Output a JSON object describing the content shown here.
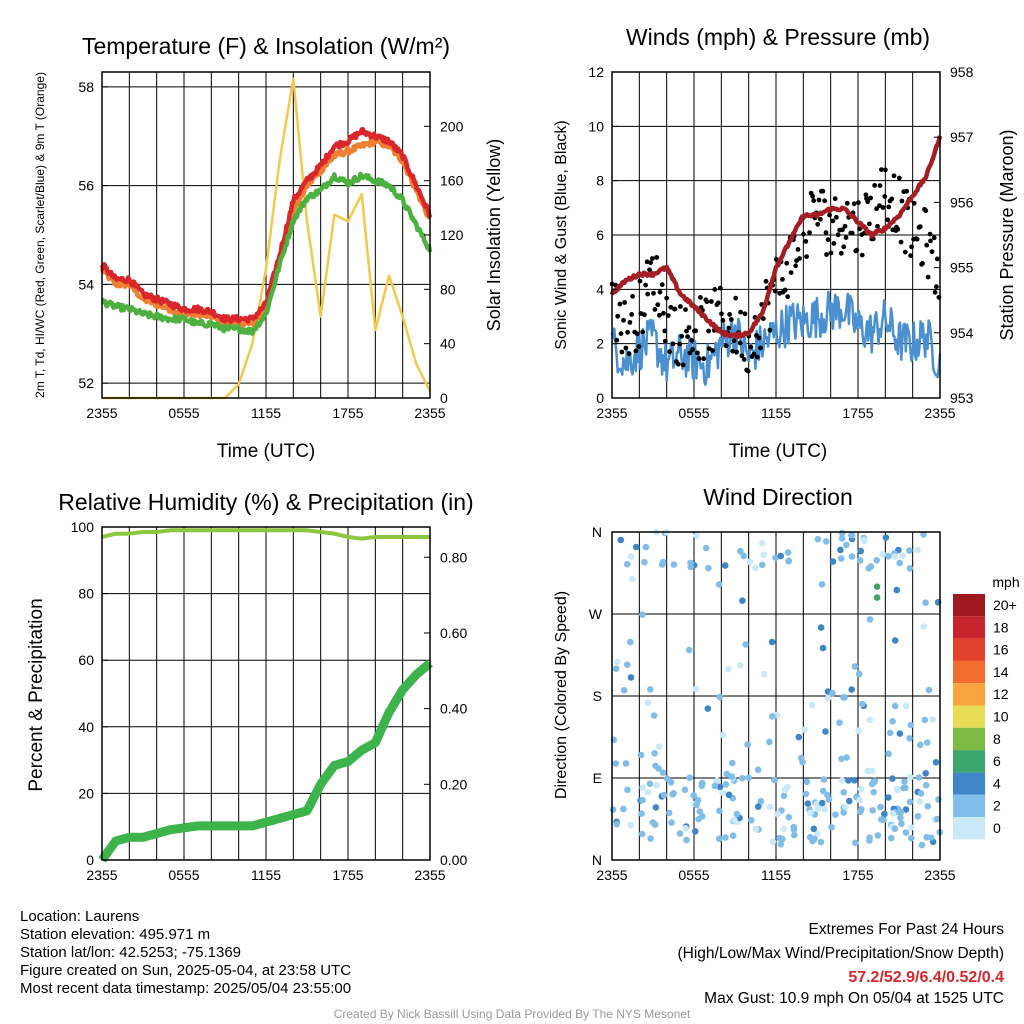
{
  "chart_data": [
    {
      "type": "line",
      "title": "Temperature (F) & Insolation (W/m²)",
      "xlabel": "Time (UTC)",
      "ylabel": "2m T, Td, HI/WC (Red, Green, Scarlet/Blue) & 9m T (Orange)",
      "ylabel_right": "Solar Insolation (Yellow)",
      "x_ticks": [
        "2355",
        "0555",
        "1155",
        "1755",
        "2355"
      ],
      "y_ticks": [
        "52",
        "54",
        "56",
        "58"
      ],
      "y_ticks_right": [
        "0",
        "40",
        "80",
        "120",
        "160",
        "200"
      ],
      "ylim": [
        51.7,
        58.3
      ],
      "ylim_right": [
        0,
        240
      ],
      "x_hours": [
        0,
        1,
        2,
        3,
        4,
        5,
        6,
        7,
        8,
        9,
        10,
        11,
        12,
        13,
        14,
        15,
        16,
        17,
        18,
        19,
        20,
        21,
        22,
        23,
        24
      ],
      "series": [
        {
          "color": "#f2c94c",
          "axis": "right",
          "values": [
            0,
            0,
            0,
            0,
            0,
            0,
            0,
            0,
            0,
            0,
            10,
            40,
            95,
            175,
            235,
            130,
            60,
            135,
            130,
            150,
            50,
            90,
            60,
            25,
            5
          ]
        },
        {
          "color": "#f08030",
          "axis": "left",
          "values": [
            54.3,
            54.0,
            54.0,
            53.7,
            53.6,
            53.5,
            53.4,
            53.4,
            53.35,
            53.2,
            53.2,
            53.2,
            53.5,
            54.5,
            55.5,
            56.0,
            56.3,
            56.6,
            56.7,
            56.8,
            56.9,
            56.8,
            56.5,
            55.9,
            55.3
          ]
        },
        {
          "color": "#d8262b",
          "axis": "left",
          "values": [
            54.4,
            54.1,
            54.1,
            53.8,
            53.7,
            53.6,
            53.5,
            53.5,
            53.45,
            53.3,
            53.3,
            53.3,
            53.6,
            54.6,
            55.7,
            56.1,
            56.4,
            56.8,
            56.9,
            57.1,
            57.0,
            56.9,
            56.6,
            56.0,
            55.4
          ]
        },
        {
          "color": "#4db13f",
          "axis": "left",
          "values": [
            53.65,
            53.55,
            53.5,
            53.4,
            53.35,
            53.3,
            53.3,
            53.2,
            53.2,
            53.1,
            53.1,
            53.05,
            53.4,
            54.4,
            55.3,
            55.75,
            55.9,
            56.2,
            56.05,
            56.2,
            56.1,
            56.0,
            55.7,
            55.2,
            54.7
          ]
        }
      ]
    },
    {
      "type": "scatter",
      "title": "Winds (mph) & Pressure (mb)",
      "xlabel": "Time (UTC)",
      "ylabel": "Sonic Wind & Gust (Blue, Black)",
      "ylabel_right": "Station Pressure (Maroon)",
      "x_ticks": [
        "2355",
        "0555",
        "1155",
        "1755",
        "2355"
      ],
      "y_ticks": [
        "0",
        "2",
        "4",
        "6",
        "8",
        "10",
        "12"
      ],
      "y_ticks_right": [
        "953",
        "954",
        "955",
        "956",
        "957",
        "958"
      ],
      "ylim": [
        0,
        12
      ],
      "ylim_right": [
        953,
        958
      ],
      "x_hours": [
        0,
        1,
        2,
        3,
        4,
        5,
        6,
        7,
        8,
        9,
        10,
        11,
        12,
        13,
        14,
        15,
        16,
        17,
        18,
        19,
        20,
        21,
        22,
        23,
        24
      ],
      "series": [
        {
          "color": "#4a90d0",
          "axis": "left",
          "values": [
            2.0,
            1.3,
            1.8,
            2.2,
            1.2,
            1.6,
            1.4,
            1.2,
            2.0,
            2.5,
            1.5,
            2.0,
            2.4,
            2.8,
            2.8,
            3.0,
            3.2,
            3.3,
            2.6,
            2.4,
            2.9,
            2.1,
            2.0,
            2.3,
            1.2
          ]
        },
        {
          "color": "#000000",
          "axis": "left",
          "values": [
            3.8,
            2.4,
            3.1,
            4.6,
            3.0,
            2.3,
            2.5,
            2.6,
            3.0,
            2.6,
            2.0,
            3.1,
            4.1,
            5.0,
            6.0,
            7.0,
            6.2,
            6.6,
            6.3,
            6.8,
            7.8,
            7.0,
            6.0,
            5.8,
            4.2
          ]
        },
        {
          "color": "#a51e24",
          "axis": "right",
          "values": [
            954.6,
            954.8,
            954.9,
            954.9,
            955.0,
            954.6,
            954.4,
            954.2,
            954.0,
            953.95,
            954.0,
            954.3,
            955.0,
            955.4,
            955.8,
            955.8,
            955.9,
            955.9,
            955.7,
            955.5,
            955.6,
            955.8,
            956.1,
            956.4,
            957.0
          ]
        }
      ]
    },
    {
      "type": "line",
      "title": "Relative Humidity (%) & Precipitation (in)",
      "ylabel": "Percent & Precipitation",
      "x_ticks": [
        "2355",
        "0555",
        "1155",
        "1755",
        "2355"
      ],
      "y_ticks": [
        "0",
        "20",
        "40",
        "60",
        "80",
        "100"
      ],
      "y_ticks_right": [
        "0.00",
        "0.20",
        "0.40",
        "0.60",
        "0.80"
      ],
      "ylim": [
        0,
        100
      ],
      "ylim_right": [
        0,
        0.88
      ],
      "x_hours": [
        0,
        1,
        2,
        3,
        4,
        5,
        6,
        7,
        8,
        9,
        10,
        11,
        12,
        13,
        14,
        15,
        16,
        17,
        18,
        19,
        20,
        21,
        22,
        23,
        24
      ],
      "series": [
        {
          "color": "#8cc63f",
          "axis": "left",
          "values": [
            97,
            98,
            98,
            98.5,
            98.5,
            99,
            99,
            99,
            99,
            99,
            99,
            99,
            99,
            99,
            99,
            99,
            98.5,
            98,
            97,
            96.5,
            97,
            97,
            97,
            97,
            97
          ]
        },
        {
          "color": "#3cb44b",
          "axis": "right",
          "values": [
            0.0,
            0.05,
            0.06,
            0.06,
            0.07,
            0.08,
            0.085,
            0.09,
            0.09,
            0.09,
            0.09,
            0.09,
            0.1,
            0.11,
            0.12,
            0.13,
            0.2,
            0.25,
            0.26,
            0.29,
            0.31,
            0.39,
            0.45,
            0.49,
            0.52
          ]
        }
      ]
    },
    {
      "type": "scatter",
      "title": "Wind Direction",
      "ylabel": "Direction (Colored By Speed)",
      "x_ticks": [
        "2355",
        "0555",
        "1155",
        "1755",
        "2355"
      ],
      "y_ticks": [
        "N",
        "E",
        "S",
        "W",
        "N"
      ],
      "ylim": [
        0,
        360
      ],
      "legend_title": "mph",
      "legend_labels": [
        "20+",
        "18",
        "16",
        "14",
        "12",
        "10",
        "8",
        "6",
        "4",
        "2",
        "0"
      ],
      "legend_colors": [
        "#9e1a1e",
        "#c8242b",
        "#e2412b",
        "#f26b2f",
        "#f9a33e",
        "#e9dc55",
        "#7dbb43",
        "#3da66a",
        "#3f86c8",
        "#80bde8",
        "#c9e8f8"
      ]
    }
  ],
  "info": {
    "location": "Location: Laurens",
    "elevation": "Station elevation: 495.971 m",
    "latlon": "Station lat/lon: 42.5253; -75.1369",
    "created": "Figure created on Sun, 2025-05-04, at 23:58 UTC",
    "recent": "Most recent data timestamp: 2025/05/04 23:55:00"
  },
  "extremes": {
    "title": "Extremes For Past 24 Hours",
    "subtitle": "(High/Low/Max Wind/Precipitation/Snow Depth)",
    "values": "57.2/52.9/6.4/0.52/0.4",
    "gust": "Max Gust: 10.9 mph On 05/04 at 1525 UTC",
    "value_color": "#d8262b"
  },
  "credit": "Created By Nick Bassill Using Data Provided By The NYS Mesonet"
}
